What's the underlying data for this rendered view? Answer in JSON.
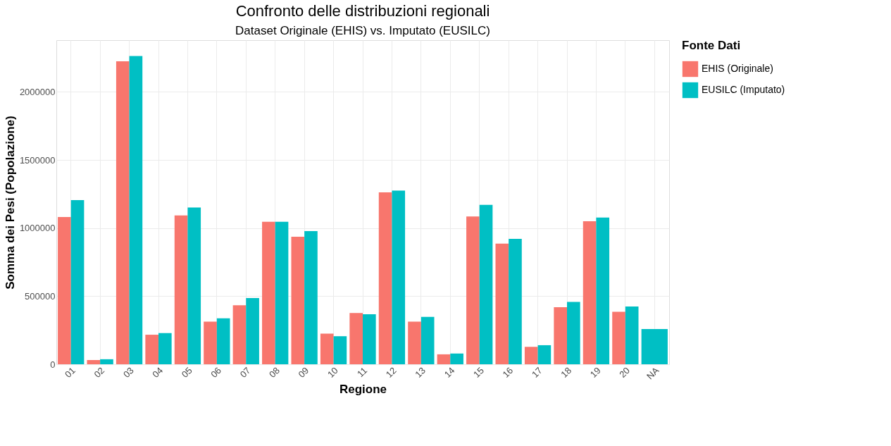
{
  "chart_data": {
    "type": "bar",
    "title": "Confronto delle distribuzioni regionali",
    "subtitle": "Dataset Originale (EHIS) vs. Imputato (EUSILC)",
    "xlabel": "Regione",
    "ylabel": "Somma dei Pesi (Popolazione)",
    "legend_title": "Fonte Dati",
    "categories": [
      "01",
      "02",
      "03",
      "04",
      "05",
      "06",
      "07",
      "08",
      "09",
      "10",
      "11",
      "12",
      "13",
      "14",
      "15",
      "16",
      "17",
      "18",
      "19",
      "20",
      "NA"
    ],
    "series": [
      {
        "name": "EHIS (Originale)",
        "color": "#f8766d",
        "values": [
          1081000,
          31000,
          2225000,
          217000,
          1093000,
          313000,
          433000,
          1046000,
          936000,
          225000,
          376000,
          1263000,
          313000,
          73000,
          1085000,
          886000,
          128000,
          419000,
          1050000,
          386000,
          null
        ]
      },
      {
        "name": "EUSILC (Imputato)",
        "color": "#00bfc4",
        "values": [
          1205000,
          37000,
          2264000,
          229000,
          1151000,
          337000,
          486000,
          1046000,
          978000,
          206000,
          367000,
          1275000,
          348000,
          79000,
          1170000,
          921000,
          140000,
          458000,
          1078000,
          424000,
          259000
        ]
      }
    ],
    "ylim": [
      0,
      2380000
    ],
    "yticks": [
      0,
      500000,
      1000000,
      1500000,
      2000000
    ],
    "grid": true,
    "legend": "right"
  }
}
